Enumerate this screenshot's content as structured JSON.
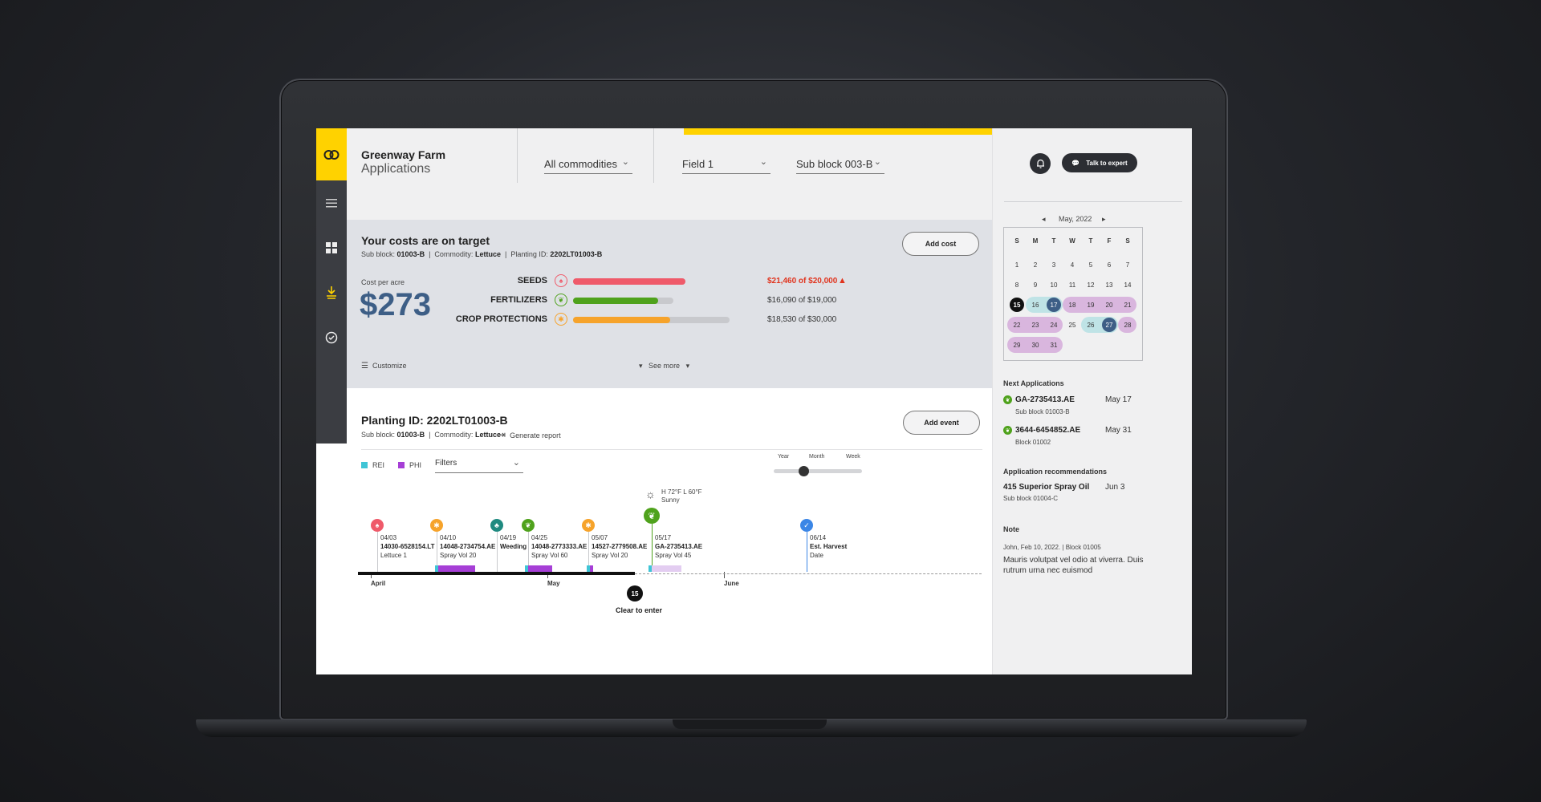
{
  "header": {
    "farm_name": "Greenway Farm",
    "section": "Applications",
    "commodity": "All commodities",
    "field": "Field 1",
    "sub_block": "Sub block 003-B"
  },
  "top_actions": {
    "talk_label": "Talk to expert"
  },
  "costs": {
    "title": "Your costs are on target",
    "sub_block_label": "Sub block:",
    "sub_block": "01003-B",
    "commodity_label": "Commodity:",
    "commodity": "Lettuce",
    "planting_label": "Planting ID:",
    "planting_id": "2202LT01003-B",
    "add_cost_label": "Add cost",
    "cost_per_acre_label": "Cost per acre",
    "cost_per_acre": "$273",
    "customize_label": "Customize",
    "see_more_label": "See more",
    "items": [
      {
        "label": "SEEDS",
        "amount": "$21,460 of $20,000",
        "fraction": 1.07,
        "color": "#ef5a6a",
        "icon": "seed-icon",
        "over": true
      },
      {
        "label": "FERTILIZERS",
        "amount": "$16,090 of $19,000",
        "fraction": 0.85,
        "color": "#4fa21c",
        "icon": "leaf-icon",
        "over": false
      },
      {
        "label": "CROP PROTECTIONS",
        "amount": "$18,530 of $30,000",
        "fraction": 0.62,
        "color": "#f6a32b",
        "icon": "bug-icon",
        "over": false
      }
    ]
  },
  "planting": {
    "title": "Planting ID: 2202LT01003-B",
    "sub_block_label": "Sub block:",
    "sub_block": "01003-B",
    "commodity_label": "Commodity:",
    "commodity": "Lettuce",
    "report_label": "Generate report",
    "add_event_label": "Add event",
    "legend": [
      {
        "label": "REI",
        "color": "#3fc5d6"
      },
      {
        "label": "PHI",
        "color": "#a63fd6"
      }
    ],
    "filters_label": "Filters",
    "zoom_labels": [
      "Year",
      "Month",
      "Week"
    ],
    "zoom_level": "Month",
    "weather": {
      "temps": "H 72°F   L 60°F",
      "condition": "Sunny"
    },
    "events": [
      {
        "date": "04/03",
        "id": "14030-6528154.LT",
        "detail": "Lettuce 1",
        "color": "#ef5a6a",
        "icon": "seed-icon"
      },
      {
        "date": "04/10",
        "id": "14048-2734754.AE",
        "detail": "Spray Vol 20",
        "color": "#f6a32b",
        "icon": "bug-icon"
      },
      {
        "date": "04/19",
        "id": "Weeding",
        "detail": "",
        "color": "#1f8a80",
        "icon": "weeding-icon"
      },
      {
        "date": "04/25",
        "id": "14048-2773333.AE",
        "detail": "Spray Vol 60",
        "color": "#4fa21c",
        "icon": "leaf-icon"
      },
      {
        "date": "05/07",
        "id": "14527-2779508.AE",
        "detail": "Spray Vol 20",
        "color": "#f6a32b",
        "icon": "bug-icon"
      },
      {
        "date": "05/17",
        "id": "GA-2735413.AE",
        "detail": "Spray Vol 45",
        "color": "#4fa21c",
        "icon": "leaf-icon"
      },
      {
        "date": "06/14",
        "id": "Est. Harvest",
        "detail": "Date",
        "color": "#3b86e6",
        "icon": "check-icon"
      }
    ],
    "months": [
      "April",
      "May",
      "June"
    ],
    "today": "15",
    "clear_label": "Clear to enter"
  },
  "calendar": {
    "month_label": "May, 2022",
    "weekdays": [
      "S",
      "M",
      "T",
      "W",
      "T",
      "F",
      "S"
    ],
    "days": [
      "1",
      "2",
      "3",
      "4",
      "5",
      "6",
      "7",
      "8",
      "9",
      "10",
      "11",
      "12",
      "13",
      "14",
      "15",
      "16",
      "17",
      "18",
      "19",
      "20",
      "21",
      "22",
      "23",
      "24",
      "25",
      "26",
      "27",
      "28",
      "29",
      "30",
      "31"
    ],
    "today": "15",
    "selected": [
      "17",
      "27"
    ]
  },
  "next_apps": {
    "heading": "Next Applications",
    "items": [
      {
        "id": "GA-2735413.AE",
        "block": "Sub block 01003-B",
        "date": "May 17"
      },
      {
        "id": "3644-6454852.AE",
        "block": "Block 01002",
        "date": "May 31"
      }
    ]
  },
  "recommendations": {
    "heading": "Application recommendations",
    "title": "415 Superior Spray Oil",
    "date": "Jun 3",
    "block": "Sub block 01004-C"
  },
  "note": {
    "heading": "Note",
    "meta": "John, Feb 10, 2022.  |  Block 01005",
    "text": "Mauris volutpat vel odio at viverra. Duis rutrum urna nec euismod"
  }
}
